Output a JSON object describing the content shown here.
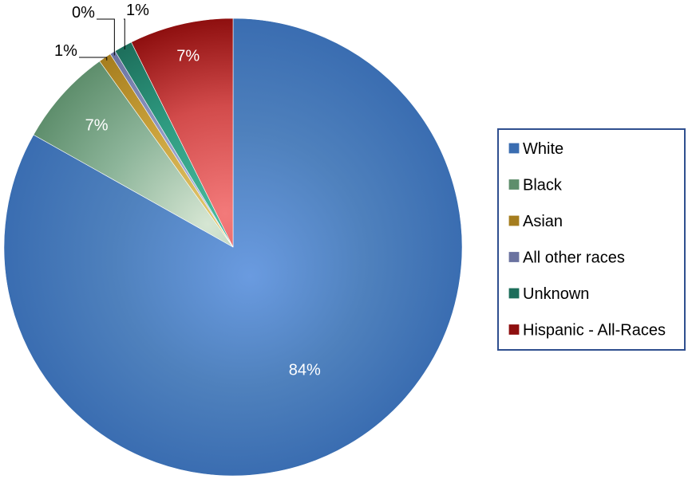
{
  "chart_data": {
    "type": "pie",
    "title": "",
    "slices": [
      {
        "name": "White",
        "value": 84,
        "label": "84%",
        "color": "#4F81BD",
        "light": "#6A9BE0",
        "dark": "#3A6DB1"
      },
      {
        "name": "Black",
        "value": 7,
        "label": "7%",
        "color": "#8DB59A",
        "light": "#D6E6D3",
        "dark": "#5E8E6C"
      },
      {
        "name": "Asian",
        "value": 0.9,
        "label": "1%",
        "color": "#C9A13A",
        "light": "#E2C76F",
        "dark": "#A57D1E"
      },
      {
        "name": "All other races",
        "value": 0.4,
        "label": "0%",
        "color": "#8D96C2",
        "light": "#B4BCE0",
        "dark": "#6A72A0"
      },
      {
        "name": "Unknown",
        "value": 1.3,
        "label": "1%",
        "color": "#2E9A80",
        "light": "#48B99C",
        "dark": "#1D6E5B"
      },
      {
        "name": "Hispanic - All-Races",
        "value": 7.4,
        "label": "7%",
        "color": "#D24B4B",
        "light": "#F37A7A",
        "dark": "#8E0F0F"
      }
    ],
    "legend": {
      "position": "right",
      "entries": [
        "White",
        "Black",
        "Asian",
        "All other races",
        "Unknown",
        "Hispanic - All-Races"
      ]
    },
    "label_colors": {
      "inside": "#FFFFFF",
      "outside": "#000000"
    }
  }
}
